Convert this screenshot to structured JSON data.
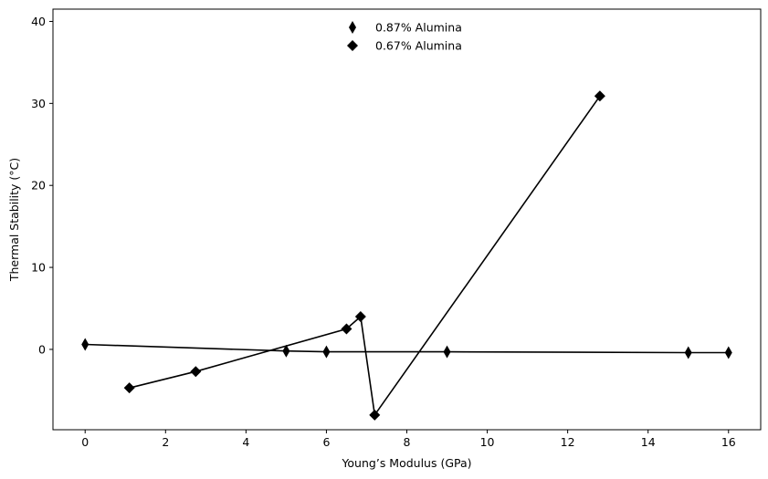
{
  "chart_data": {
    "type": "line",
    "xlabel": "Young’s Modulus (GPa)",
    "ylabel": "Thermal Stability (°C)",
    "xlim": [
      -0.8,
      16.8
    ],
    "ylim": [
      -9.8,
      41.5
    ],
    "xticks": [
      0,
      2,
      4,
      6,
      8,
      10,
      12,
      14,
      16
    ],
    "yticks": [
      0,
      10,
      20,
      30,
      40
    ],
    "grid": false,
    "legend_position": "top-center",
    "series": [
      {
        "name": "0.87% Alumina",
        "marker": "thin-diamond",
        "color": "#000000",
        "x": [
          0,
          5,
          6,
          9,
          15,
          16
        ],
        "y": [
          0.6,
          -0.2,
          -0.3,
          -0.3,
          -0.4,
          -0.4
        ]
      },
      {
        "name": "0.67% Alumina",
        "marker": "diamond",
        "color": "#000000",
        "x": [
          1.1,
          2.75,
          6.5,
          6.85,
          7.2,
          12.8
        ],
        "y": [
          -4.7,
          -2.7,
          2.5,
          4.0,
          -8.0,
          30.9
        ]
      }
    ]
  }
}
